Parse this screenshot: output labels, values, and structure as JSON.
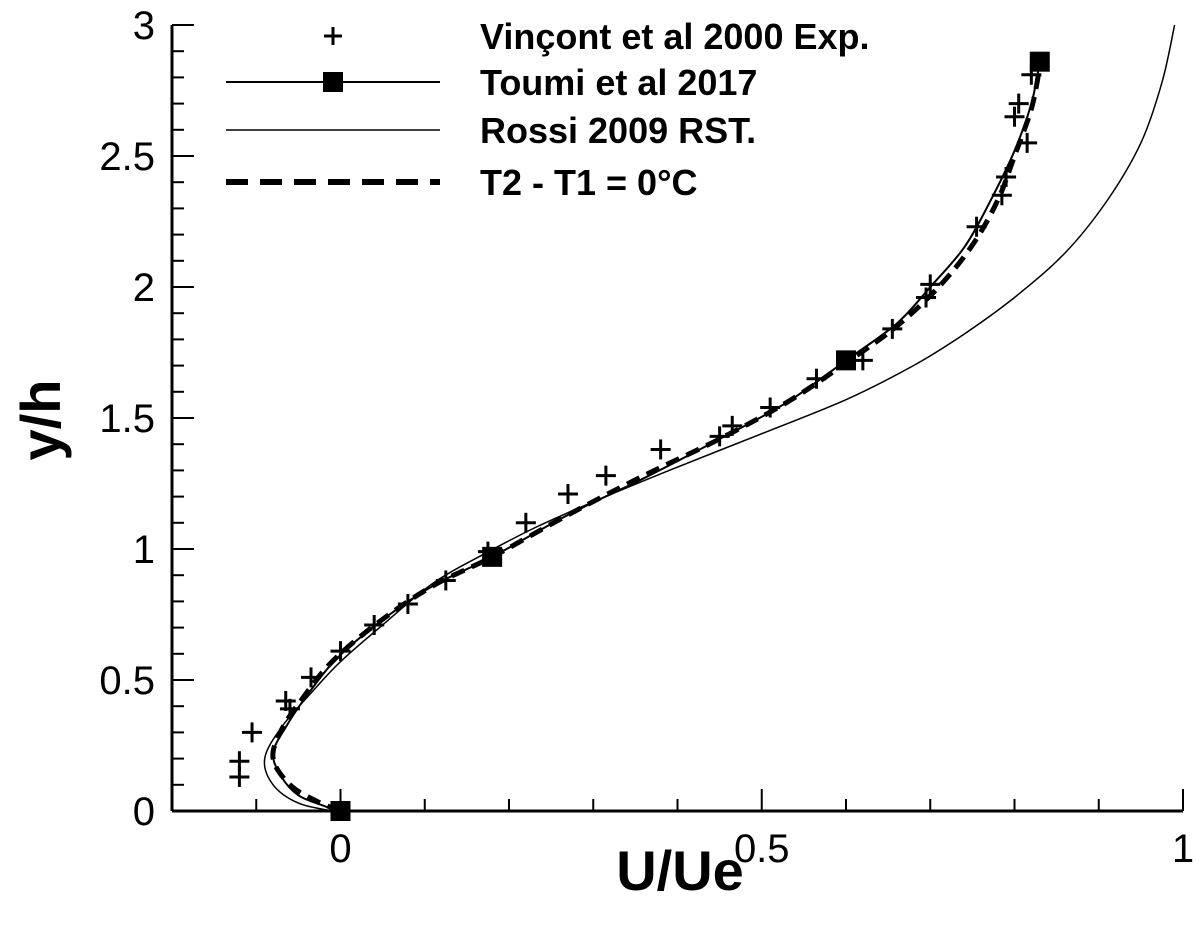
{
  "chart_data": {
    "type": "line",
    "title": "",
    "xlabel": "U/Ue",
    "ylabel": "y/h",
    "xlim": [
      -0.2,
      1.0
    ],
    "ylim": [
      0,
      3
    ],
    "x_ticks": [
      "0",
      "0.5",
      "1"
    ],
    "y_ticks": [
      "0",
      "0.5",
      "1",
      "1.5",
      "2",
      "2.5",
      "3"
    ],
    "grid": false,
    "legend_position": "top-left",
    "series": [
      {
        "name": "Vinçont et al 2000 Exp.",
        "style": "plus-markers",
        "points": [
          [
            -0.12,
            0.13
          ],
          [
            -0.12,
            0.19
          ],
          [
            -0.105,
            0.3
          ],
          [
            -0.065,
            0.42
          ],
          [
            -0.06,
            0.39
          ],
          [
            -0.035,
            0.51
          ],
          [
            0.0,
            0.61
          ],
          [
            0.04,
            0.71
          ],
          [
            0.08,
            0.79
          ],
          [
            0.125,
            0.88
          ],
          [
            0.175,
            0.99
          ],
          [
            0.22,
            1.1
          ],
          [
            0.27,
            1.21
          ],
          [
            0.315,
            1.28
          ],
          [
            0.38,
            1.38
          ],
          [
            0.45,
            1.43
          ],
          [
            0.465,
            1.47
          ],
          [
            0.51,
            1.54
          ],
          [
            0.565,
            1.65
          ],
          [
            0.62,
            1.72
          ],
          [
            0.655,
            1.84
          ],
          [
            0.7,
            2.01
          ],
          [
            0.695,
            1.96
          ],
          [
            0.755,
            2.23
          ],
          [
            0.785,
            2.35
          ],
          [
            0.79,
            2.42
          ],
          [
            0.815,
            2.55
          ],
          [
            0.8,
            2.65
          ],
          [
            0.805,
            2.7
          ],
          [
            0.82,
            2.81
          ]
        ]
      },
      {
        "name": "Toumi et al 2017",
        "style": "solid-square-markers",
        "x": [
          0.0,
          -0.02,
          -0.05,
          -0.07,
          -0.08,
          -0.065,
          -0.04,
          -0.005,
          0.05,
          0.11,
          0.18,
          0.27,
          0.36,
          0.45,
          0.53,
          0.6,
          0.66,
          0.7,
          0.74,
          0.77,
          0.8,
          0.82,
          0.83
        ],
        "y": [
          0.0,
          0.02,
          0.06,
          0.13,
          0.22,
          0.32,
          0.44,
          0.58,
          0.73,
          0.86,
          0.97,
          1.13,
          1.27,
          1.42,
          1.56,
          1.72,
          1.86,
          2.0,
          2.15,
          2.32,
          2.52,
          2.7,
          2.86
        ],
        "marked_points": [
          [
            0.0,
            0.0
          ],
          [
            0.18,
            0.97
          ],
          [
            0.6,
            1.72
          ],
          [
            0.83,
            2.86
          ]
        ]
      },
      {
        "name": "Rossi 2009 RST.",
        "style": "thin-solid",
        "x": [
          -0.01,
          -0.05,
          -0.08,
          -0.09,
          -0.07,
          -0.035,
          0.0,
          0.05,
          0.11,
          0.17,
          0.23,
          0.3,
          0.39,
          0.5,
          0.6,
          0.68,
          0.74,
          0.8,
          0.86,
          0.91,
          0.95,
          0.975,
          0.99
        ],
        "y": [
          0.0,
          0.03,
          0.1,
          0.2,
          0.32,
          0.45,
          0.57,
          0.71,
          0.87,
          0.98,
          1.08,
          1.18,
          1.3,
          1.44,
          1.57,
          1.7,
          1.82,
          1.96,
          2.13,
          2.33,
          2.55,
          2.78,
          3.0
        ]
      },
      {
        "name": "T2 - T1 = 0°C",
        "style": "dashed",
        "x": [
          0.0,
          -0.03,
          -0.06,
          -0.08,
          -0.07,
          -0.045,
          -0.01,
          0.045,
          0.11,
          0.18,
          0.27,
          0.36,
          0.45,
          0.53,
          0.6,
          0.66,
          0.71,
          0.75,
          0.78,
          0.8,
          0.82,
          0.83
        ],
        "y": [
          0.0,
          0.04,
          0.1,
          0.2,
          0.31,
          0.43,
          0.57,
          0.72,
          0.86,
          0.97,
          1.13,
          1.28,
          1.42,
          1.56,
          1.71,
          1.85,
          2.0,
          2.16,
          2.33,
          2.5,
          2.68,
          2.84
        ]
      }
    ]
  }
}
